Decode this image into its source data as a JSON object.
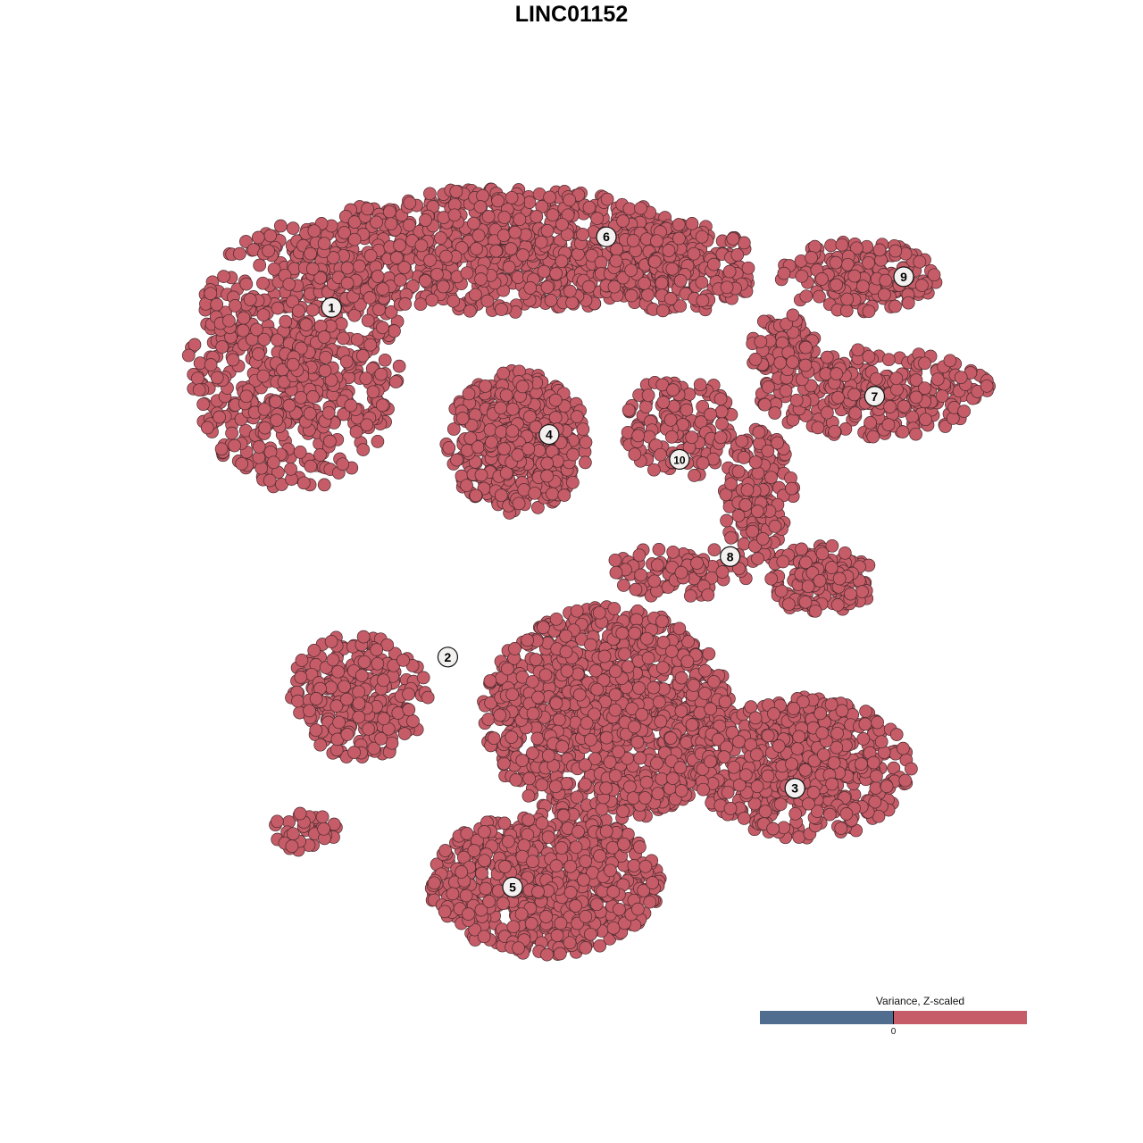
{
  "chart_data": {
    "type": "scatter",
    "title": "LINC01152",
    "xlim": [
      -50,
      50
    ],
    "ylim": [
      -50,
      50
    ],
    "axes_visible": false,
    "grid": false,
    "point_color": "#c55c67",
    "point_stroke": "#4a2a2e",
    "colorbar": {
      "title": "Variance, Z-scaled",
      "tick_labels": [
        "0"
      ],
      "low_color": "#506d8f",
      "high_color": "#c55c67",
      "placement": "bottom-right"
    },
    "cluster_regions": [
      {
        "cluster": "1",
        "cx": -33.3,
        "cy": 25.8,
        "rx": 12.9,
        "ry": 16,
        "n": 700
      },
      {
        "cluster": "6",
        "cx": -8.6,
        "cy": 38.7,
        "rx": 24.7,
        "ry": 7.5,
        "n": 900
      },
      {
        "cluster": "6",
        "cx": 12.9,
        "cy": 36.6,
        "rx": 9.7,
        "ry": 5.4,
        "n": 220
      },
      {
        "cluster": "4",
        "cx": -6.5,
        "cy": 15.6,
        "rx": 8.6,
        "ry": 8.6,
        "n": 500
      },
      {
        "cluster": "10",
        "cx": 12.9,
        "cy": 17.5,
        "rx": 6.5,
        "ry": 6.5,
        "n": 150
      },
      {
        "cluster": "7",
        "cx": 36.6,
        "cy": 21.5,
        "rx": 14,
        "ry": 5.4,
        "n": 300
      },
      {
        "cluster": "7",
        "cx": 25.8,
        "cy": 26.9,
        "rx": 4.3,
        "ry": 4.3,
        "n": 80
      },
      {
        "cluster": "9",
        "cx": 34.4,
        "cy": 35.5,
        "rx": 9.7,
        "ry": 4.3,
        "n": 180
      },
      {
        "cluster": "8",
        "cx": 22.6,
        "cy": 8.6,
        "rx": 4.3,
        "ry": 8.6,
        "n": 150
      },
      {
        "cluster": "8",
        "cx": 30.1,
        "cy": -1.1,
        "rx": 6.5,
        "ry": 4.3,
        "n": 150
      },
      {
        "cluster": "8",
        "cx": 12.9,
        "cy": 0,
        "rx": 8.6,
        "ry": 3.2,
        "n": 100
      },
      {
        "cluster": "2",
        "cx": -25.8,
        "cy": -15.1,
        "rx": 8.6,
        "ry": 7.5,
        "n": 300
      },
      {
        "cluster": "2",
        "cx": -32.3,
        "cy": -31.2,
        "rx": 4.3,
        "ry": 2.7,
        "n": 40
      },
      {
        "cluster": "central",
        "cx": 4.3,
        "cy": -17.2,
        "rx": 15,
        "ry": 13,
        "n": 1200
      },
      {
        "cluster": "3",
        "cx": 28,
        "cy": -23.7,
        "rx": 13,
        "ry": 8.6,
        "n": 600
      },
      {
        "cluster": "5",
        "cx": -3.2,
        "cy": -37.6,
        "rx": 14,
        "ry": 8.6,
        "n": 800
      }
    ],
    "cluster_labels": [
      {
        "label": "1",
        "x": -28.9,
        "y": 31.8
      },
      {
        "label": "2",
        "x": -14.9,
        "y": -10.3
      },
      {
        "label": "3",
        "x": 26.9,
        "y": -26.1
      },
      {
        "label": "4",
        "x": -2.7,
        "y": 16.5
      },
      {
        "label": "5",
        "x": -7.1,
        "y": -38.0
      },
      {
        "label": "6",
        "x": 4.2,
        "y": 40.3
      },
      {
        "label": "7",
        "x": 36.5,
        "y": 21.1
      },
      {
        "label": "8",
        "x": 19.1,
        "y": 1.8
      },
      {
        "label": "9",
        "x": 40.0,
        "y": 35.5
      },
      {
        "label": "10",
        "x": 13.0,
        "y": 13.5
      }
    ]
  }
}
